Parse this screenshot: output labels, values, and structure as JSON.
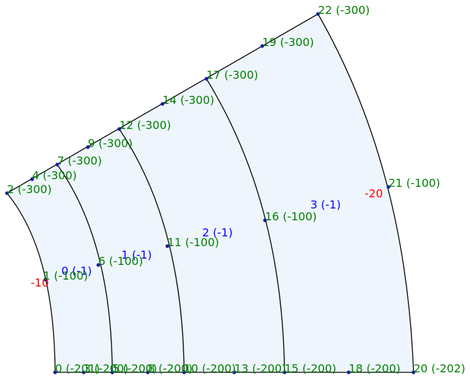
{
  "colors": {
    "node_label": "#008000",
    "region_label": "#0000ff",
    "boundary_label": "#ff0000",
    "region_fill": "#eef5fd",
    "node_dot": "#1a1aa6"
  },
  "nodes": [
    {
      "id": "n0",
      "label": "0 (-201)"
    },
    {
      "id": "n1",
      "label": "1 (-100)"
    },
    {
      "id": "n2",
      "label": "2 (-300)"
    },
    {
      "id": "n3",
      "label": "3 (-200)"
    },
    {
      "id": "n4",
      "label": "4 (-300)"
    },
    {
      "id": "n5",
      "label": "5 (-200)"
    },
    {
      "id": "n6",
      "label": "6 (-100)"
    },
    {
      "id": "n7",
      "label": "7 (-300)"
    },
    {
      "id": "n8",
      "label": "8 (-200)"
    },
    {
      "id": "n9",
      "label": "9 (-300)"
    },
    {
      "id": "n10",
      "label": "10 (-200)"
    },
    {
      "id": "n11",
      "label": "11 (-100)"
    },
    {
      "id": "n12",
      "label": "12 (-300)"
    },
    {
      "id": "n13",
      "label": "13 (-200)"
    },
    {
      "id": "n14",
      "label": "14 (-300)"
    },
    {
      "id": "n15",
      "label": "15 (-200)"
    },
    {
      "id": "n16",
      "label": "16 (-100)"
    },
    {
      "id": "n17",
      "label": "17 (-300)"
    },
    {
      "id": "n18",
      "label": "18 (-200)"
    },
    {
      "id": "n19",
      "label": "19 (-300)"
    },
    {
      "id": "n20",
      "label": "20 (-202)"
    },
    {
      "id": "n21",
      "label": "21 (-100)"
    },
    {
      "id": "n22",
      "label": "22 (-300)"
    }
  ],
  "regions": [
    {
      "id": "r0",
      "label": "0 (-1)"
    },
    {
      "id": "r1",
      "label": "1 (-1)"
    },
    {
      "id": "r2",
      "label": "2 (-1)"
    },
    {
      "id": "r3",
      "label": "3 (-1)"
    }
  ],
  "boundaries": [
    {
      "id": "b-inner",
      "label": "-10"
    },
    {
      "id": "b-outer",
      "label": "-20"
    }
  ]
}
